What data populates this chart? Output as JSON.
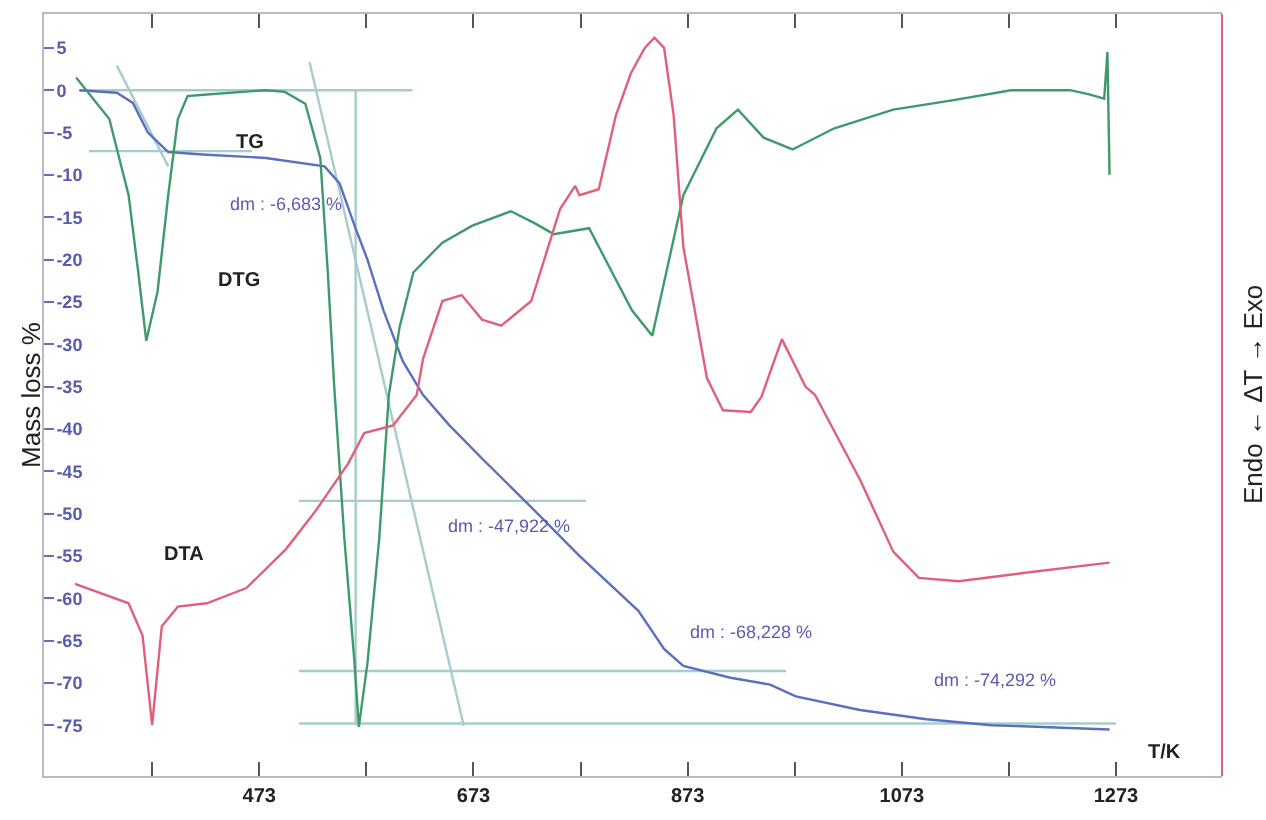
{
  "chart_data": {
    "type": "line",
    "xlabel": "T/K",
    "ylabel": "Mass loss %",
    "y2label": "Endo ← ΔT → Exo",
    "xlim": [
      272,
      1372
    ],
    "ylim": [
      -81,
      9
    ],
    "xticks": [
      {
        "value": 373,
        "label": null
      },
      473,
      {
        "value": 573,
        "label": null
      },
      673,
      {
        "value": 773,
        "label": null
      },
      873,
      {
        "value": 973,
        "label": null
      },
      1073,
      {
        "value": 1173,
        "label": null
      },
      1273
    ],
    "yticks": [
      5,
      0,
      -5,
      -10,
      -15,
      -20,
      -25,
      -30,
      -35,
      -40,
      -45,
      -50,
      -55,
      -60,
      -65,
      -70,
      -75
    ],
    "marker": "none",
    "line_style": "solid",
    "series": [
      {
        "color": "#a8cccc",
        "x": [
          305,
          616
        ],
        "values": [
          0,
          0
        ]
      },
      {
        "color": "#a8cccc",
        "x": [
          314,
          466
        ],
        "values": [
          -7.2,
          -7.2
        ]
      },
      {
        "color": "#a8cccc",
        "x": [
          510,
          778
        ],
        "values": [
          -48.5,
          -48.5
        ]
      },
      {
        "color": "#a8cccc",
        "x": [
          510,
          965
        ],
        "values": [
          -68.6,
          -68.6
        ]
      },
      {
        "color": "#a8cccc",
        "x": [
          510,
          1273
        ],
        "values": [
          -74.8,
          -74.8
        ]
      },
      {
        "color": "#a8cccc",
        "x": [
          563,
          563
        ],
        "values": [
          0,
          -75
        ]
      },
      {
        "color": "#a8cccc",
        "x": [
          520,
          664
        ],
        "values": [
          3.3,
          -75.1
        ]
      },
      {
        "color": "#a8cccc",
        "x": [
          340,
          388
        ],
        "values": [
          2.9,
          -9
        ]
      },
      {
        "color": "#5b6fc0",
        "x": [
          305,
          340,
          355,
          369,
          388,
          420,
          479,
          534,
          548,
          562,
          574,
          589,
          607,
          626,
          650,
          681,
          725,
          772,
          827,
          851,
          869,
          913,
          950,
          974,
          1034,
          1096,
          1157,
          1267
        ],
        "values": [
          0,
          -0.3,
          -1.5,
          -5,
          -7.3,
          -7.6,
          -8,
          -9,
          -11,
          -16,
          -20,
          -26,
          -32,
          -36,
          -39.5,
          -43.5,
          -49,
          -55,
          -61.5,
          -66,
          -68,
          -69.4,
          -70.2,
          -71.6,
          -73.2,
          -74.3,
          -75,
          -75.5
        ]
      },
      {
        "color": "#3f9a6a",
        "x": [
          302,
          333,
          351,
          360,
          367.5,
          378,
          388,
          397,
          406,
          424,
          479,
          497,
          516,
          530,
          537,
          543,
          552.5,
          562,
          566,
          574,
          585,
          594,
          604,
          617,
          644,
          672,
          708,
          730,
          748,
          781,
          821,
          840,
          869,
          900,
          920,
          944,
          971,
          1010,
          1065,
          1120,
          1175,
          1230,
          1248,
          1262,
          1265,
          1267
        ],
        "values": [
          1.5,
          -3.4,
          -12.4,
          -21.5,
          -29.6,
          -23.8,
          -12.4,
          -3.4,
          -0.7,
          -0.5,
          0,
          -0.2,
          -1.6,
          -8,
          -21.5,
          -35,
          -53,
          -67.7,
          -75.2,
          -67.7,
          -53,
          -36,
          -28,
          -21.5,
          -18,
          -16,
          -14.3,
          -15.7,
          -17,
          -16.3,
          -26,
          -29,
          -12.4,
          -4.5,
          -2.3,
          -5.6,
          -7,
          -4.5,
          -2.3,
          -1.2,
          0,
          0,
          -0.5,
          -1,
          4.5,
          -10
        ]
      },
      {
        "color": "#e0607a",
        "x": [
          301,
          351,
          364,
          373,
          382,
          397,
          424,
          461,
          498,
          525,
          556,
          571,
          598,
          620,
          626,
          644,
          662,
          681,
          699,
          727,
          754,
          768,
          772,
          790,
          806,
          820,
          833,
          842,
          851,
          860,
          869,
          891,
          906,
          932,
          942,
          961,
          983,
          992,
          1034,
          1065,
          1089,
          1126,
          1188,
          1267
        ],
        "values": [
          -58.3,
          -60.6,
          -64.4,
          -75,
          -63.3,
          -61,
          -60.6,
          -58.8,
          -54.2,
          -49.8,
          -44.1,
          -40.5,
          -39.6,
          -36,
          -31.7,
          -24.9,
          -24.2,
          -27.1,
          -27.8,
          -24.9,
          -14,
          -11.3,
          -12.4,
          -11.7,
          -3,
          2,
          5,
          6.2,
          5,
          -3,
          -18.5,
          -34,
          -37.8,
          -38,
          -36.2,
          -29.4,
          -35,
          -36,
          -46,
          -54.5,
          -57.6,
          -58,
          -57,
          -55.8
        ]
      }
    ],
    "annotations": [
      "TG",
      "DTG",
      "DTA",
      "dm : -6,683 %",
      "dm : -47,922 %",
      "dm : -68,228 %",
      "dm : -74,292 %"
    ]
  }
}
